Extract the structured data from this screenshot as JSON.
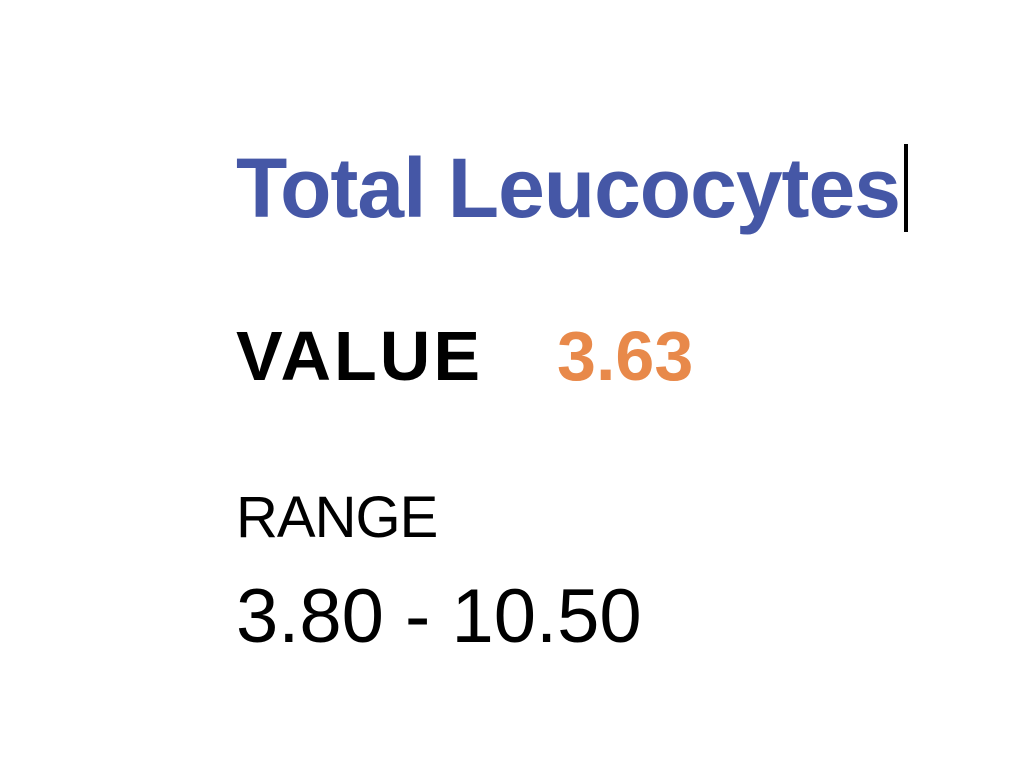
{
  "document": {
    "title": "Total Leucocytes",
    "value_label": "VALUE",
    "value": "3.63",
    "range_label": "RANGE",
    "range": "3.80 - 10.50"
  },
  "colors": {
    "title": "#4557a6",
    "value": "#e8894a",
    "text": "#000000"
  }
}
